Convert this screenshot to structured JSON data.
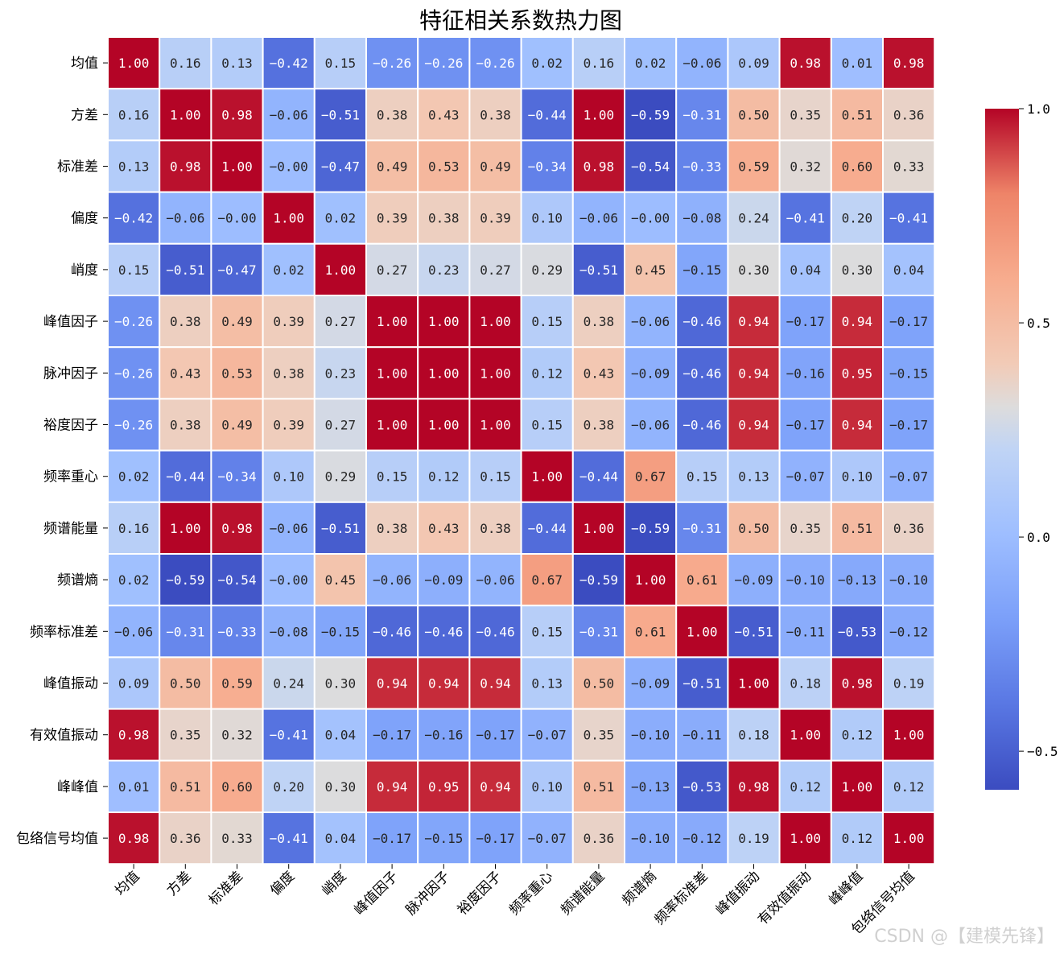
{
  "chart_data": {
    "type": "heatmap",
    "title": "特征相关系数热力图",
    "xlabel": "",
    "ylabel": "",
    "labels": [
      "均值",
      "方差",
      "标准差",
      "偏度",
      "峭度",
      "峰值因子",
      "脉冲因子",
      "裕度因子",
      "频率重心",
      "频谱能量",
      "频谱熵",
      "频率标准差",
      "峰值振动",
      "有效值振动",
      "峰峰值",
      "包络信号均值"
    ],
    "matrix": [
      [
        1.0,
        0.16,
        0.13,
        -0.42,
        0.15,
        -0.26,
        -0.26,
        -0.26,
        0.02,
        0.16,
        0.02,
        -0.06,
        0.09,
        0.98,
        0.01,
        0.98
      ],
      [
        0.16,
        1.0,
        0.98,
        -0.06,
        -0.51,
        0.38,
        0.43,
        0.38,
        -0.44,
        1.0,
        -0.59,
        -0.31,
        0.5,
        0.35,
        0.51,
        0.36
      ],
      [
        0.13,
        0.98,
        1.0,
        -0.0,
        -0.47,
        0.49,
        0.53,
        0.49,
        -0.34,
        0.98,
        -0.54,
        -0.33,
        0.59,
        0.32,
        0.6,
        0.33
      ],
      [
        -0.42,
        -0.06,
        -0.0,
        1.0,
        0.02,
        0.39,
        0.38,
        0.39,
        0.1,
        -0.06,
        -0.0,
        -0.08,
        0.24,
        -0.41,
        0.2,
        -0.41
      ],
      [
        0.15,
        -0.51,
        -0.47,
        0.02,
        1.0,
        0.27,
        0.23,
        0.27,
        0.29,
        -0.51,
        0.45,
        -0.15,
        0.3,
        0.04,
        0.3,
        0.04
      ],
      [
        -0.26,
        0.38,
        0.49,
        0.39,
        0.27,
        1.0,
        1.0,
        1.0,
        0.15,
        0.38,
        -0.06,
        -0.46,
        0.94,
        -0.17,
        0.94,
        -0.17
      ],
      [
        -0.26,
        0.43,
        0.53,
        0.38,
        0.23,
        1.0,
        1.0,
        1.0,
        0.12,
        0.43,
        -0.09,
        -0.46,
        0.94,
        -0.16,
        0.95,
        -0.15
      ],
      [
        -0.26,
        0.38,
        0.49,
        0.39,
        0.27,
        1.0,
        1.0,
        1.0,
        0.15,
        0.38,
        -0.06,
        -0.46,
        0.94,
        -0.17,
        0.94,
        -0.17
      ],
      [
        0.02,
        -0.44,
        -0.34,
        0.1,
        0.29,
        0.15,
        0.12,
        0.15,
        1.0,
        -0.44,
        0.67,
        0.15,
        0.13,
        -0.07,
        0.1,
        -0.07
      ],
      [
        0.16,
        1.0,
        0.98,
        -0.06,
        -0.51,
        0.38,
        0.43,
        0.38,
        -0.44,
        1.0,
        -0.59,
        -0.31,
        0.5,
        0.35,
        0.51,
        0.36
      ],
      [
        0.02,
        -0.59,
        -0.54,
        -0.0,
        0.45,
        -0.06,
        -0.09,
        -0.06,
        0.67,
        -0.59,
        1.0,
        0.61,
        -0.09,
        -0.1,
        -0.13,
        -0.1
      ],
      [
        -0.06,
        -0.31,
        -0.33,
        -0.08,
        -0.15,
        -0.46,
        -0.46,
        -0.46,
        0.15,
        -0.31,
        0.61,
        1.0,
        -0.51,
        -0.11,
        -0.53,
        -0.12
      ],
      [
        0.09,
        0.5,
        0.59,
        0.24,
        0.3,
        0.94,
        0.94,
        0.94,
        0.13,
        0.5,
        -0.09,
        -0.51,
        1.0,
        0.18,
        0.98,
        0.19
      ],
      [
        0.98,
        0.35,
        0.32,
        -0.41,
        0.04,
        -0.17,
        -0.16,
        -0.17,
        -0.07,
        0.35,
        -0.1,
        -0.11,
        0.18,
        1.0,
        0.12,
        1.0
      ],
      [
        0.01,
        0.51,
        0.6,
        0.2,
        0.3,
        0.94,
        0.95,
        0.94,
        0.1,
        0.51,
        -0.13,
        -0.53,
        0.98,
        0.12,
        1.0,
        0.12
      ],
      [
        0.98,
        0.36,
        0.33,
        -0.41,
        0.04,
        -0.17,
        -0.15,
        -0.17,
        -0.07,
        0.36,
        -0.1,
        -0.12,
        0.19,
        1.0,
        0.12,
        1.0
      ]
    ],
    "colormap": "coolwarm",
    "vmin": -0.59,
    "vmax": 1.0,
    "colorbar_ticks": [
      -0.5,
      0.0,
      0.5,
      1.0
    ],
    "colorbar_tick_labels": [
      "−0.5",
      "0.0",
      "0.5",
      "1.0"
    ],
    "value_format": "2 decimals",
    "grid_lines": "white",
    "legend_placement": "right"
  },
  "watermark": "CSDN @【建模先锋】"
}
